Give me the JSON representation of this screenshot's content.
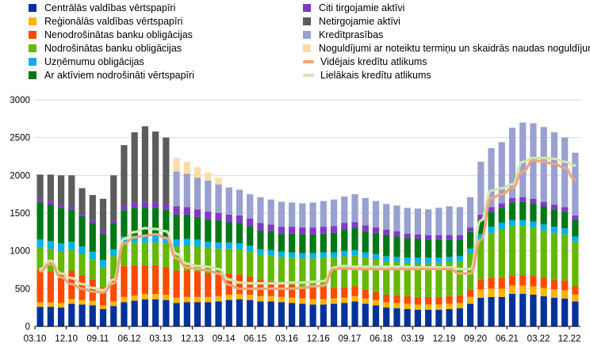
{
  "chart_data": {
    "type": "bar",
    "stacked": true,
    "title": "",
    "xlabel": "",
    "ylabel": "",
    "ylim": [
      0,
      3000
    ],
    "yticks": [
      0,
      500,
      1000,
      1500,
      2000,
      2500,
      3000
    ],
    "grid": "horizontal",
    "legend_position": "top",
    "x_tick_labels": [
      "03.10",
      "12.10",
      "09.11",
      "06.12",
      "03.13",
      "12.13",
      "09.14",
      "06.15",
      "03.16",
      "12.16",
      "09.17",
      "06.18",
      "03.19",
      "12.19",
      "09.20",
      "06.21",
      "03.22",
      "12.22"
    ],
    "n_periods": 52,
    "series": [
      {
        "name": "Centrālās valdības vērtspapīri",
        "color": "#003299",
        "kind": "bar",
        "values": [
          260,
          260,
          250,
          300,
          290,
          280,
          230,
          270,
          320,
          340,
          360,
          360,
          350,
          310,
          320,
          320,
          320,
          330,
          350,
          360,
          350,
          330,
          330,
          320,
          310,
          300,
          290,
          290,
          300,
          310,
          330,
          300,
          280,
          250,
          240,
          230,
          220,
          220,
          220,
          230,
          240,
          300,
          380,
          390,
          390,
          430,
          430,
          420,
          400,
          380,
          370,
          330
        ]
      },
      {
        "name": "Reģionālās valdības vērtspapīri",
        "color": "#FFB400",
        "kind": "bar",
        "values": [
          60,
          60,
          60,
          60,
          60,
          60,
          50,
          60,
          70,
          70,
          70,
          70,
          70,
          70,
          70,
          70,
          70,
          70,
          70,
          70,
          70,
          70,
          70,
          70,
          70,
          70,
          70,
          70,
          70,
          70,
          70,
          70,
          70,
          70,
          70,
          70,
          70,
          70,
          70,
          70,
          70,
          90,
          110,
          110,
          110,
          110,
          110,
          110,
          110,
          110,
          110,
          90
        ]
      },
      {
        "name": "Nenodrošinātas banku obligācijas",
        "color": "#FF4B00",
        "kind": "bar",
        "values": [
          430,
          410,
          400,
          380,
          330,
          280,
          240,
          320,
          410,
          400,
          380,
          380,
          370,
          360,
          350,
          340,
          320,
          300,
          280,
          260,
          240,
          220,
          200,
          180,
          170,
          160,
          160,
          160,
          140,
          140,
          130,
          120,
          110,
          100,
          100,
          100,
          100,
          100,
          100,
          100,
          100,
          100,
          130,
          140,
          140,
          140,
          140,
          140,
          130,
          130,
          130,
          110
        ]
      },
      {
        "name": "Nodrošinātas banku obligācijas",
        "color": "#65B800",
        "kind": "bar",
        "values": [
          300,
          300,
          290,
          280,
          280,
          270,
          270,
          280,
          300,
          300,
          300,
          300,
          310,
          320,
          330,
          330,
          330,
          330,
          330,
          330,
          330,
          330,
          340,
          350,
          360,
          370,
          380,
          390,
          400,
          410,
          410,
          420,
          430,
          440,
          440,
          440,
          450,
          450,
          450,
          450,
          450,
          480,
          520,
          600,
          650,
          650,
          650,
          640,
          630,
          620,
          610,
          590
        ]
      },
      {
        "name": "Uzņēmumu obligācijas",
        "color": "#00B1EA",
        "kind": "bar",
        "values": [
          100,
          100,
          100,
          100,
          100,
          100,
          90,
          90,
          90,
          90,
          90,
          90,
          90,
          90,
          90,
          90,
          80,
          80,
          80,
          80,
          80,
          70,
          70,
          70,
          70,
          70,
          70,
          70,
          70,
          70,
          70,
          70,
          70,
          70,
          70,
          70,
          70,
          70,
          70,
          70,
          70,
          60,
          80,
          80,
          80,
          80,
          80,
          80,
          80,
          80,
          80,
          70
        ]
      },
      {
        "name": "Ar aktīviem nodrošināti vērtspapīri",
        "color": "#007816",
        "kind": "bar",
        "values": [
          500,
          480,
          470,
          430,
          400,
          380,
          350,
          350,
          350,
          370,
          380,
          370,
          360,
          330,
          320,
          300,
          300,
          290,
          270,
          270,
          260,
          250,
          250,
          240,
          250,
          250,
          250,
          250,
          260,
          280,
          290,
          280,
          280,
          280,
          270,
          260,
          250,
          240,
          240,
          230,
          220,
          220,
          200,
          200,
          200,
          230,
          240,
          240,
          240,
          230,
          220,
          220
        ]
      },
      {
        "name": "Citi tirgojamie aktīvi",
        "color": "#8139C6",
        "kind": "bar",
        "values": [
          40,
          40,
          40,
          40,
          40,
          40,
          40,
          40,
          60,
          70,
          70,
          70,
          70,
          110,
          100,
          100,
          100,
          100,
          100,
          100,
          100,
          100,
          90,
          90,
          90,
          90,
          90,
          90,
          90,
          90,
          80,
          80,
          70,
          70,
          70,
          60,
          60,
          60,
          60,
          60,
          60,
          60,
          60,
          60,
          60,
          60,
          60,
          60,
          60,
          60,
          60,
          60
        ]
      },
      {
        "name": "Netirgojamie aktīvi",
        "color": "#5C5C5C",
        "kind": "bar",
        "values": [
          320,
          360,
          390,
          410,
          330,
          330,
          420,
          590,
          800,
          930,
          1000,
          940,
          880,
          0,
          0,
          0,
          0,
          0,
          0,
          0,
          0,
          0,
          0,
          0,
          0,
          0,
          0,
          0,
          0,
          0,
          0,
          0,
          0,
          0,
          0,
          0,
          0,
          0,
          0,
          0,
          0,
          0,
          0,
          0,
          0,
          0,
          0,
          0,
          0,
          0,
          0,
          0
        ]
      },
      {
        "name": "Kredītprasības",
        "color": "#98A1D0",
        "kind": "bar",
        "values": [
          0,
          0,
          0,
          0,
          0,
          0,
          0,
          0,
          0,
          0,
          0,
          0,
          0,
          460,
          440,
          420,
          410,
          380,
          360,
          340,
          320,
          340,
          330,
          330,
          320,
          320,
          330,
          340,
          350,
          350,
          370,
          360,
          350,
          340,
          340,
          340,
          340,
          340,
          360,
          380,
          370,
          400,
          700,
          780,
          810,
          930,
          990,
          1000,
          990,
          960,
          920,
          830
        ]
      },
      {
        "name": "Noguldījumi ar noteiktu termiņu un skaidrās naudas noguldījumi",
        "color": "#FDDDA7",
        "kind": "bar",
        "values": [
          0,
          0,
          0,
          0,
          0,
          0,
          0,
          0,
          0,
          0,
          0,
          0,
          0,
          180,
          160,
          140,
          110,
          90,
          0,
          0,
          0,
          0,
          0,
          0,
          0,
          0,
          0,
          0,
          0,
          0,
          0,
          0,
          0,
          0,
          0,
          0,
          0,
          0,
          0,
          0,
          0,
          0,
          0,
          0,
          0,
          0,
          0,
          0,
          0,
          0,
          0,
          0
        ]
      },
      {
        "name": "Vidējais kredītu atlikums",
        "color": "#F1A678",
        "kind": "line",
        "values": [
          730,
          830,
          650,
          560,
          500,
          460,
          450,
          570,
          1100,
          1180,
          1200,
          1220,
          1170,
          900,
          780,
          760,
          740,
          700,
          550,
          500,
          500,
          500,
          500,
          500,
          500,
          510,
          530,
          540,
          760,
          770,
          760,
          760,
          760,
          760,
          760,
          760,
          760,
          760,
          760,
          760,
          700,
          700,
          1150,
          1700,
          1750,
          1830,
          2050,
          2200,
          2180,
          2150,
          2100,
          1940
        ]
      },
      {
        "name": "Lielākais kredītu atlikums",
        "color": "#D3E6B3",
        "kind": "line",
        "values": [
          760,
          870,
          700,
          640,
          560,
          510,
          480,
          620,
          1160,
          1250,
          1300,
          1290,
          1260,
          960,
          830,
          800,
          790,
          760,
          620,
          580,
          570,
          570,
          570,
          570,
          580,
          580,
          590,
          600,
          780,
          800,
          790,
          790,
          790,
          790,
          790,
          790,
          780,
          780,
          780,
          780,
          760,
          760,
          1400,
          1800,
          1830,
          1880,
          2180,
          2230,
          2230,
          2220,
          2180,
          2130
        ]
      }
    ]
  }
}
